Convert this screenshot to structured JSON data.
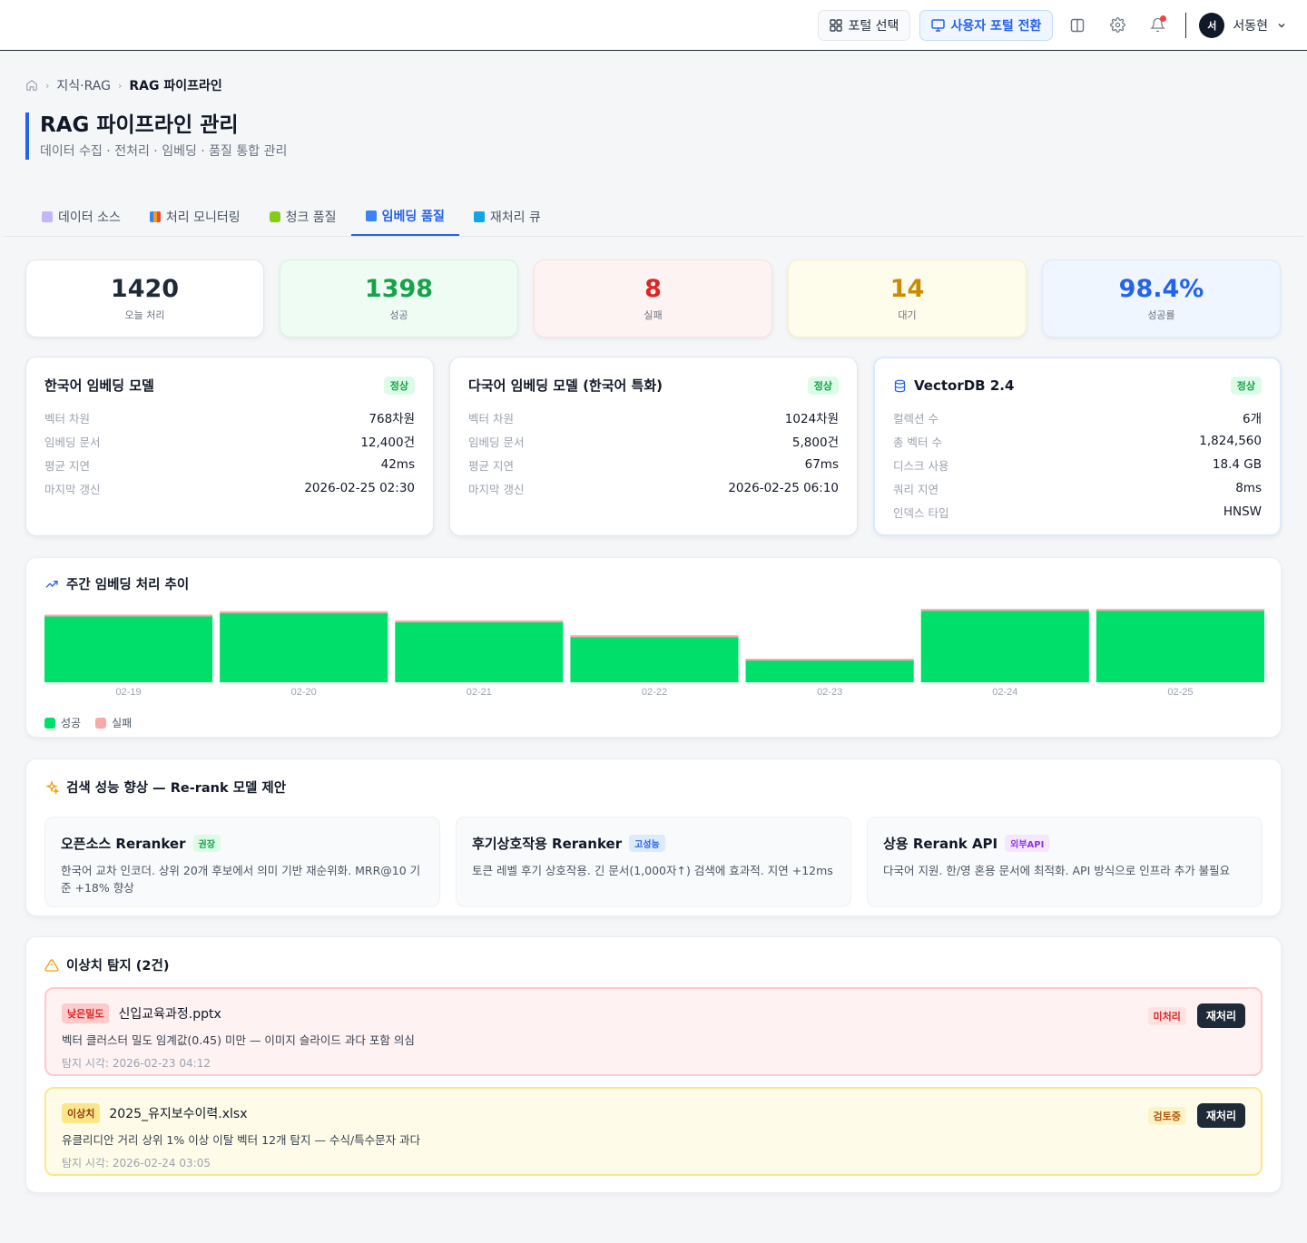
{
  "topbar": {
    "portal_select": "포털 선택",
    "user_portal_switch": "사용자 포털 전환",
    "user_initial": "서",
    "user_name": "서동현"
  },
  "breadcrumb": {
    "items": [
      "지식·RAG",
      "RAG 파이프라인"
    ]
  },
  "page": {
    "title": "RAG 파이프라인 관리",
    "subtitle": "데이터 수집 · 전처리 · 임베딩 · 품질 통합 관리"
  },
  "tabs": [
    {
      "label": "데이터 소스",
      "color": "#a78bfa"
    },
    {
      "label": "처리 모니터링",
      "color": "#f59e0b"
    },
    {
      "label": "청크 품질",
      "color": "#84cc16"
    },
    {
      "label": "임베딩 품질",
      "color": "#3b82f6"
    },
    {
      "label": "재처리 큐",
      "color": "#0ea5e9"
    }
  ],
  "stats": [
    {
      "value": "1420",
      "label": "오늘 처리"
    },
    {
      "value": "1398",
      "label": "성공"
    },
    {
      "value": "8",
      "label": "실패"
    },
    {
      "value": "14",
      "label": "대기"
    },
    {
      "value": "98.4%",
      "label": "성공률"
    }
  ],
  "models": [
    {
      "title": "한국어 임베딩 모델",
      "status": "정상",
      "rows": [
        {
          "k": "벡터 차원",
          "v": "768차원"
        },
        {
          "k": "임베딩 문서",
          "v": "12,400건"
        },
        {
          "k": "평균 지연",
          "v": "42ms"
        },
        {
          "k": "마지막 갱신",
          "v": "2026-02-25 02:30"
        }
      ]
    },
    {
      "title": "다국어 임베딩 모델 (한국어 특화)",
      "status": "정상",
      "rows": [
        {
          "k": "벡터 차원",
          "v": "1024차원"
        },
        {
          "k": "임베딩 문서",
          "v": "5,800건"
        },
        {
          "k": "평균 지연",
          "v": "67ms"
        },
        {
          "k": "마지막 갱신",
          "v": "2026-02-25 06:10"
        }
      ]
    },
    {
      "title": "VectorDB 2.4",
      "status": "정상",
      "rows": [
        {
          "k": "컬렉션 수",
          "v": "6개"
        },
        {
          "k": "총 벡터 수",
          "v": "1,824,560"
        },
        {
          "k": "디스크 사용",
          "v": "18.4 GB"
        },
        {
          "k": "쿼리 지연",
          "v": "8ms"
        },
        {
          "k": "인덱스 타입",
          "v": "HNSW"
        }
      ]
    }
  ],
  "weekly": {
    "title": "주간 임베딩 처리 추이"
  },
  "chart_data": {
    "type": "bar",
    "categories": [
      "02-19",
      "02-20",
      "02-21",
      "02-22",
      "02-23",
      "02-24",
      "02-25"
    ],
    "series": [
      {
        "name": "성공",
        "color": "#00df6a",
        "values": [
          1150,
          1210,
          1050,
          790,
          380,
          1250,
          1250
        ]
      },
      {
        "name": "실패",
        "color": "#f9a8a8",
        "values": [
          30,
          25,
          20,
          15,
          10,
          12,
          12
        ]
      }
    ],
    "ylim": [
      0,
      1300
    ]
  },
  "rerank": {
    "title": "검색 성능 향상 — Re-rank 모델 제안",
    "cards": [
      {
        "title": "오픈소스 Reranker",
        "tag": "권장",
        "desc": "한국어 교차 인코더. 상위 20개 후보에서 의미 기반 재순위화. MRR@10 기준 +18% 향상"
      },
      {
        "title": "후기상호작용 Reranker",
        "tag": "고성능",
        "desc": "토큰 레벨 후기 상호작용. 긴 문서(1,000자↑) 검색에 효과적. 지연 +12ms"
      },
      {
        "title": "상용 Rerank API",
        "tag": "외부API",
        "desc": "다국어 지원. 한/영 혼용 문서에 최적화. API 방식으로 인프라 추가 불필요"
      }
    ]
  },
  "anomalies": {
    "title": "이상치 탐지 (2건)",
    "items": [
      {
        "tag": "낮은밀도",
        "file": "신입교육과정.pptx",
        "desc": "벡터 클러스터 밀도 임계값(0.45) 미만 — 이미지 슬라이드 과다 포함 의심",
        "time": "탐지 시각: 2026-02-23 04:12",
        "status": "미처리",
        "action": "재처리"
      },
      {
        "tag": "이상치",
        "file": "2025_유지보수이력.xlsx",
        "desc": "유클리디안 거리 상위 1% 이상 이탈 벡터 12개 탐지 — 수식/특수문자 과다",
        "time": "탐지 시각: 2026-02-24 03:05",
        "status": "검토중",
        "action": "재처리"
      }
    ]
  }
}
